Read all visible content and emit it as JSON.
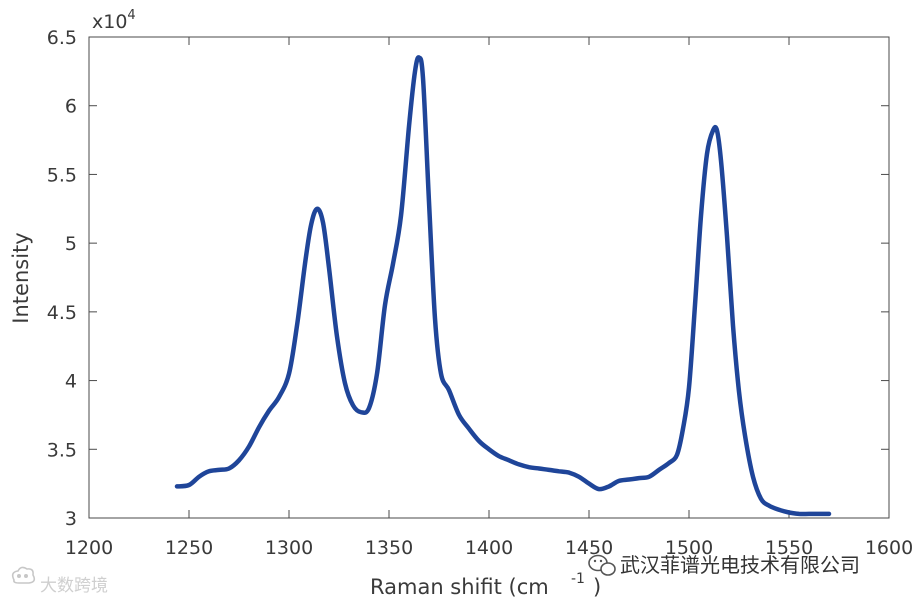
{
  "chart_data": {
    "type": "line",
    "title": "",
    "xlabel": "Raman shifit (cm",
    "xlabel_sup": "-1",
    "xlabel_close": ")",
    "ylabel": "Intensity",
    "y_multiplier": "x10",
    "y_multiplier_exp": "4",
    "xlim": [
      1200,
      1600
    ],
    "ylim": [
      3,
      6.5
    ],
    "xticks": [
      "1200",
      "1250",
      "1300",
      "1350",
      "1400",
      "1450",
      "1500",
      "1550",
      "1600"
    ],
    "yticks": [
      "3",
      "3.5",
      "4",
      "4.5",
      "5",
      "5.5",
      "6",
      "6.5"
    ],
    "grid": false,
    "series": [
      {
        "color": "#1f4599",
        "x": [
          1244,
          1250,
          1255,
          1260,
          1265,
          1270,
          1275,
          1280,
          1285,
          1290,
          1295,
          1300,
          1304,
          1308,
          1311,
          1314,
          1317,
          1320,
          1324,
          1328,
          1332,
          1336,
          1340,
          1344,
          1348,
          1352,
          1356,
          1360,
          1363,
          1365,
          1367,
          1370,
          1373,
          1376,
          1380,
          1385,
          1390,
          1395,
          1400,
          1405,
          1410,
          1415,
          1420,
          1425,
          1430,
          1435,
          1440,
          1445,
          1450,
          1455,
          1460,
          1465,
          1470,
          1475,
          1480,
          1485,
          1490,
          1494,
          1497,
          1500,
          1503,
          1506,
          1509,
          1512,
          1514,
          1516,
          1519,
          1522,
          1525,
          1528,
          1532,
          1536,
          1540,
          1545,
          1550,
          1555,
          1560,
          1565,
          1570
        ],
        "y": [
          3.23,
          3.24,
          3.3,
          3.34,
          3.35,
          3.36,
          3.42,
          3.52,
          3.66,
          3.78,
          3.88,
          4.05,
          4.4,
          4.85,
          5.13,
          5.25,
          5.15,
          4.82,
          4.32,
          3.98,
          3.82,
          3.77,
          3.8,
          4.05,
          4.55,
          4.85,
          5.2,
          5.85,
          6.25,
          6.35,
          6.2,
          5.3,
          4.45,
          4.05,
          3.93,
          3.75,
          3.65,
          3.56,
          3.5,
          3.45,
          3.42,
          3.39,
          3.37,
          3.36,
          3.35,
          3.34,
          3.33,
          3.3,
          3.25,
          3.21,
          3.23,
          3.27,
          3.28,
          3.29,
          3.3,
          3.35,
          3.4,
          3.46,
          3.65,
          3.95,
          4.55,
          5.2,
          5.65,
          5.82,
          5.82,
          5.6,
          5.05,
          4.4,
          3.92,
          3.6,
          3.3,
          3.14,
          3.09,
          3.06,
          3.04,
          3.03,
          3.03,
          3.03,
          3.03
        ]
      }
    ]
  },
  "watermarks": {
    "left": "大数跨境",
    "right": "武汉菲谱光电技术有限公司"
  }
}
